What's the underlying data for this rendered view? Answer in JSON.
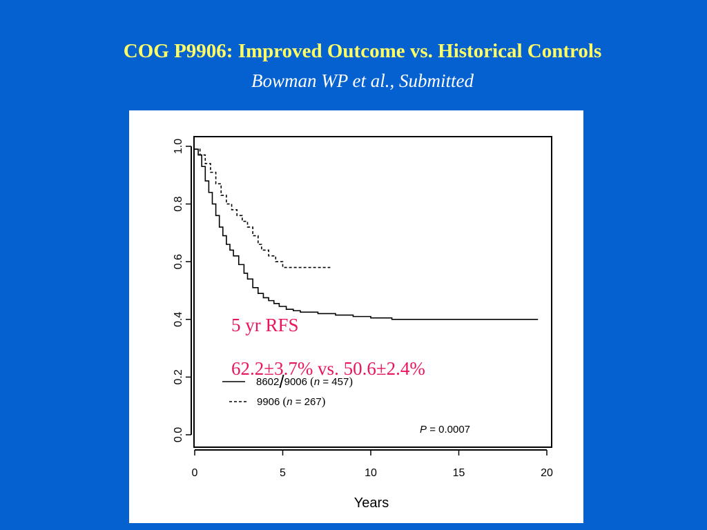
{
  "slide": {
    "title": "COG P9906: Improved Outcome vs. Historical Controls",
    "subtitle": "Bowman WP et al., Submitted"
  },
  "colors": {
    "background": "#0561cf",
    "title": "#ffff66",
    "subtitle": "#ffffff",
    "panel": "#ffffff",
    "annotation": "#e8175d",
    "curves": "#000000"
  },
  "chart_data": {
    "type": "line",
    "subtype": "kaplan-meier step curve",
    "xlabel": "Years",
    "ylabel": "",
    "xlim": [
      0,
      20
    ],
    "ylim": [
      0,
      1
    ],
    "xticks": [
      "0",
      "5",
      "10",
      "15",
      "20"
    ],
    "yticks": [
      "0.0",
      "0.2",
      "0.4",
      "0.6",
      "0.8",
      "1.0"
    ],
    "grid": false,
    "legend_position": "bottom-left",
    "legend": [
      {
        "label_parts": [
          "8602",
          "9006",
          "(",
          "n",
          "=",
          "457",
          ")"
        ],
        "line_style": "solid"
      },
      {
        "label_parts": [
          "9906",
          "(",
          "n",
          "=",
          "267",
          ")"
        ],
        "line_style": "dashed"
      }
    ],
    "series": [
      {
        "line_style": "solid",
        "x": [
          0,
          0.2,
          0.4,
          0.6,
          0.8,
          1.0,
          1.2,
          1.4,
          1.6,
          1.8,
          2.0,
          2.2,
          2.5,
          2.8,
          3.0,
          3.3,
          3.6,
          3.9,
          4.2,
          4.5,
          4.8,
          5.2,
          5.6,
          6.0,
          7.0,
          8.0,
          9.0,
          10.0,
          11.0,
          11.2,
          15.0,
          19.5
        ],
        "y": [
          0.99,
          0.97,
          0.93,
          0.88,
          0.84,
          0.8,
          0.76,
          0.72,
          0.69,
          0.66,
          0.64,
          0.62,
          0.59,
          0.56,
          0.54,
          0.51,
          0.49,
          0.475,
          0.465,
          0.455,
          0.445,
          0.435,
          0.43,
          0.425,
          0.42,
          0.415,
          0.41,
          0.405,
          0.405,
          0.4,
          0.4,
          0.4
        ]
      },
      {
        "line_style": "dashed",
        "x": [
          0,
          0.3,
          0.6,
          0.9,
          1.2,
          1.5,
          1.8,
          2.1,
          2.4,
          2.7,
          3.0,
          3.3,
          3.6,
          3.8,
          4.2,
          4.6,
          5.0,
          5.5,
          6.0,
          7.7
        ],
        "y": [
          0.99,
          0.97,
          0.94,
          0.91,
          0.87,
          0.83,
          0.8,
          0.78,
          0.76,
          0.74,
          0.72,
          0.69,
          0.66,
          0.64,
          0.62,
          0.6,
          0.58,
          0.58,
          0.58,
          0.58
        ]
      }
    ],
    "annotations": [
      "5 yr RFS",
      "62.2±3.7% vs. 50.6±2.4%"
    ],
    "p_value": {
      "symbol": "P",
      "operator": "=",
      "value": "0.0007"
    }
  }
}
